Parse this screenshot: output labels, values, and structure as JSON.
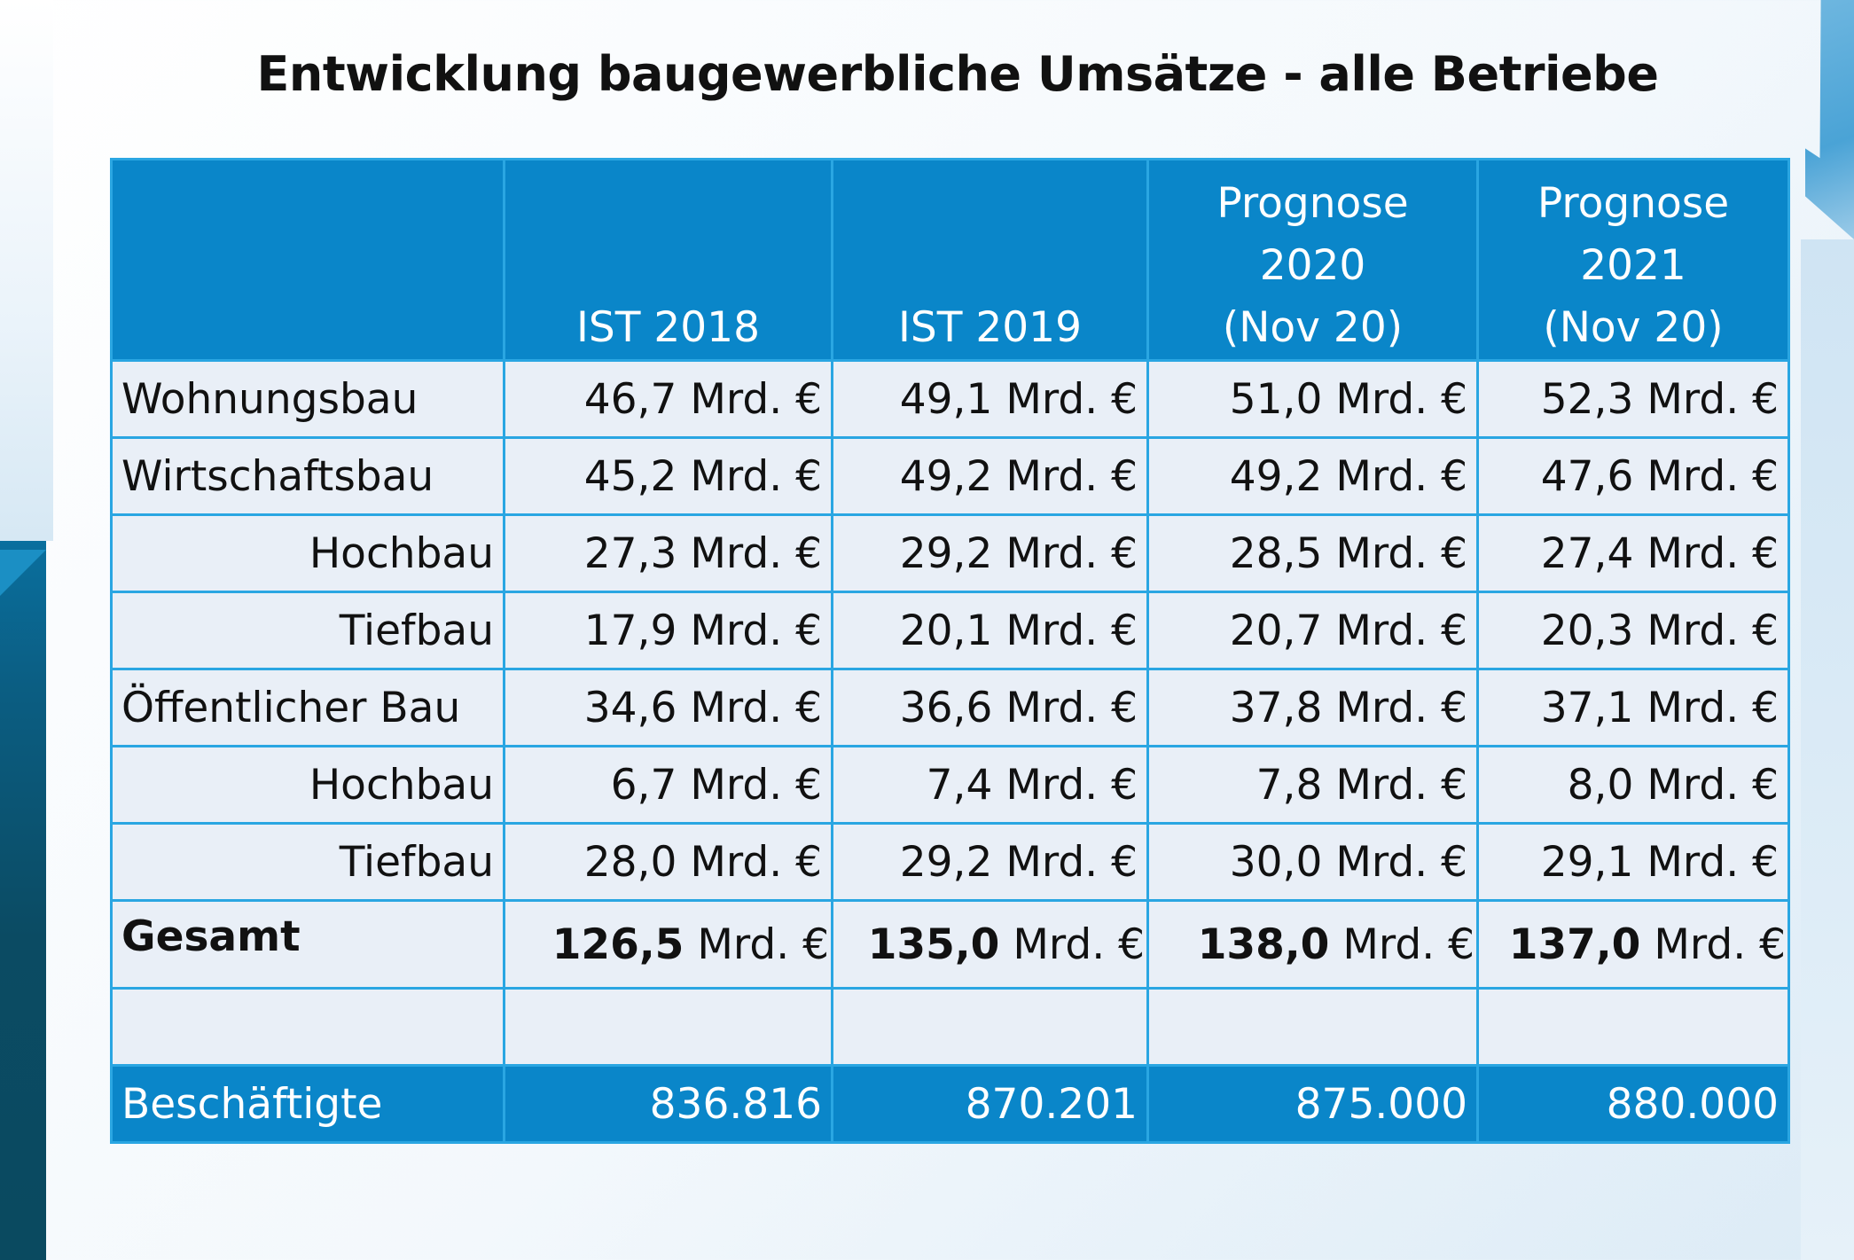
{
  "title": "Entwicklung baugewerbliche Umsätze - alle Betriebe",
  "table": {
    "headers": [
      [
        ""
      ],
      [
        "IST 2018"
      ],
      [
        "IST 2019"
      ],
      [
        "Prognose",
        "2020",
        "(Nov 20)"
      ],
      [
        "Prognose",
        "2021",
        "(Nov 20)"
      ]
    ],
    "rows": [
      {
        "label": "Wohnungsbau",
        "indent": false,
        "values": [
          "46,7 Mrd. €",
          "49,1 Mrd. €",
          "51,0 Mrd. €",
          "52,3 Mrd. €"
        ]
      },
      {
        "label": "Wirtschaftsbau",
        "indent": false,
        "values": [
          "45,2 Mrd. €",
          "49,2 Mrd. €",
          "49,2 Mrd. €",
          "47,6 Mrd. €"
        ]
      },
      {
        "label": "Hochbau",
        "indent": true,
        "values": [
          "27,3 Mrd. €",
          "29,2 Mrd. €",
          "28,5 Mrd. €",
          "27,4 Mrd. €"
        ]
      },
      {
        "label": "Tiefbau",
        "indent": true,
        "values": [
          "17,9 Mrd. €",
          "20,1 Mrd. €",
          "20,7 Mrd. €",
          "20,3 Mrd. €"
        ]
      },
      {
        "label": "Öffentlicher Bau",
        "indent": false,
        "values": [
          "34,6 Mrd. €",
          "36,6 Mrd. €",
          "37,8 Mrd. €",
          "37,1 Mrd. €"
        ]
      },
      {
        "label": "Hochbau",
        "indent": true,
        "values": [
          "6,7 Mrd. €",
          "7,4 Mrd. €",
          "7,8 Mrd. €",
          "8,0 Mrd. €"
        ]
      },
      {
        "label": "Tiefbau",
        "indent": true,
        "values": [
          "28,0 Mrd. €",
          "29,2 Mrd. €",
          "30,0 Mrd. €",
          "29,1 Mrd. €"
        ]
      }
    ],
    "total": {
      "label": "Gesamt",
      "values": [
        {
          "num": "126,5",
          "unit": " Mrd. €"
        },
        {
          "num": "135,0",
          "unit": " Mrd. €"
        },
        {
          "num": "138,0",
          "unit": " Mrd. €"
        },
        {
          "num": "137,0",
          "unit": " Mrd. €"
        }
      ]
    },
    "footer": {
      "label": "Beschäftigte",
      "values": [
        "836.816",
        "870.201",
        "875.000",
        "880.000"
      ]
    }
  },
  "colors": {
    "header_bg": "#0a86c9",
    "border": "#2aa6e2",
    "row_bg": "#e9eff7"
  }
}
